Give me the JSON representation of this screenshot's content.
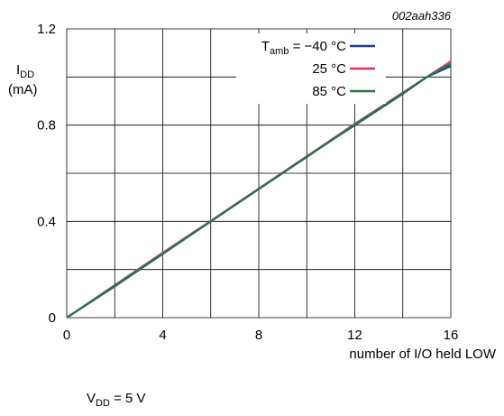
{
  "chart_data": {
    "type": "line",
    "figure_code": "002aah336",
    "ylabel": {
      "main": "I",
      "sub": "DD",
      "unit": "(mA)"
    },
    "xlabel": "number of I/O held LOW",
    "xlim": [
      0,
      16
    ],
    "ylim": [
      0,
      1.2
    ],
    "x_ticks": [
      "0",
      "4",
      "8",
      "12",
      "16"
    ],
    "y_ticks": [
      "0",
      "0.4",
      "0.8",
      "1.2"
    ],
    "x_tick_values": [
      0,
      4,
      8,
      12,
      16
    ],
    "y_tick_values": [
      0,
      0.4,
      0.8,
      1.2
    ],
    "grid": true,
    "legend_placement": "top-right",
    "legend_prefix": {
      "main": "T",
      "sub": "amb",
      "eq": " = "
    },
    "series": [
      {
        "name": "−40 °C",
        "color": "#1f3a93",
        "x": [
          0,
          2,
          4,
          6,
          8,
          10,
          12,
          14,
          15,
          16
        ],
        "y": [
          0,
          0.13,
          0.265,
          0.4,
          0.535,
          0.67,
          0.8,
          0.93,
          1.0,
          1.045
        ]
      },
      {
        "name": "25 °C",
        "color": "#e0306a",
        "x": [
          0,
          2,
          4,
          6,
          8,
          10,
          12,
          14,
          15,
          16
        ],
        "y": [
          0,
          0.135,
          0.27,
          0.402,
          0.536,
          0.67,
          0.805,
          0.935,
          1.0,
          1.065
        ]
      },
      {
        "name": "85 °C",
        "color": "#1a7a4a",
        "x": [
          0,
          2,
          4,
          6,
          8,
          10,
          12,
          14,
          15,
          16
        ],
        "y": [
          0,
          0.132,
          0.265,
          0.4,
          0.534,
          0.668,
          0.802,
          0.932,
          1.0,
          1.055
        ]
      }
    ],
    "condition": {
      "main": "V",
      "sub": "DD",
      "rest": " = 5 V"
    }
  }
}
